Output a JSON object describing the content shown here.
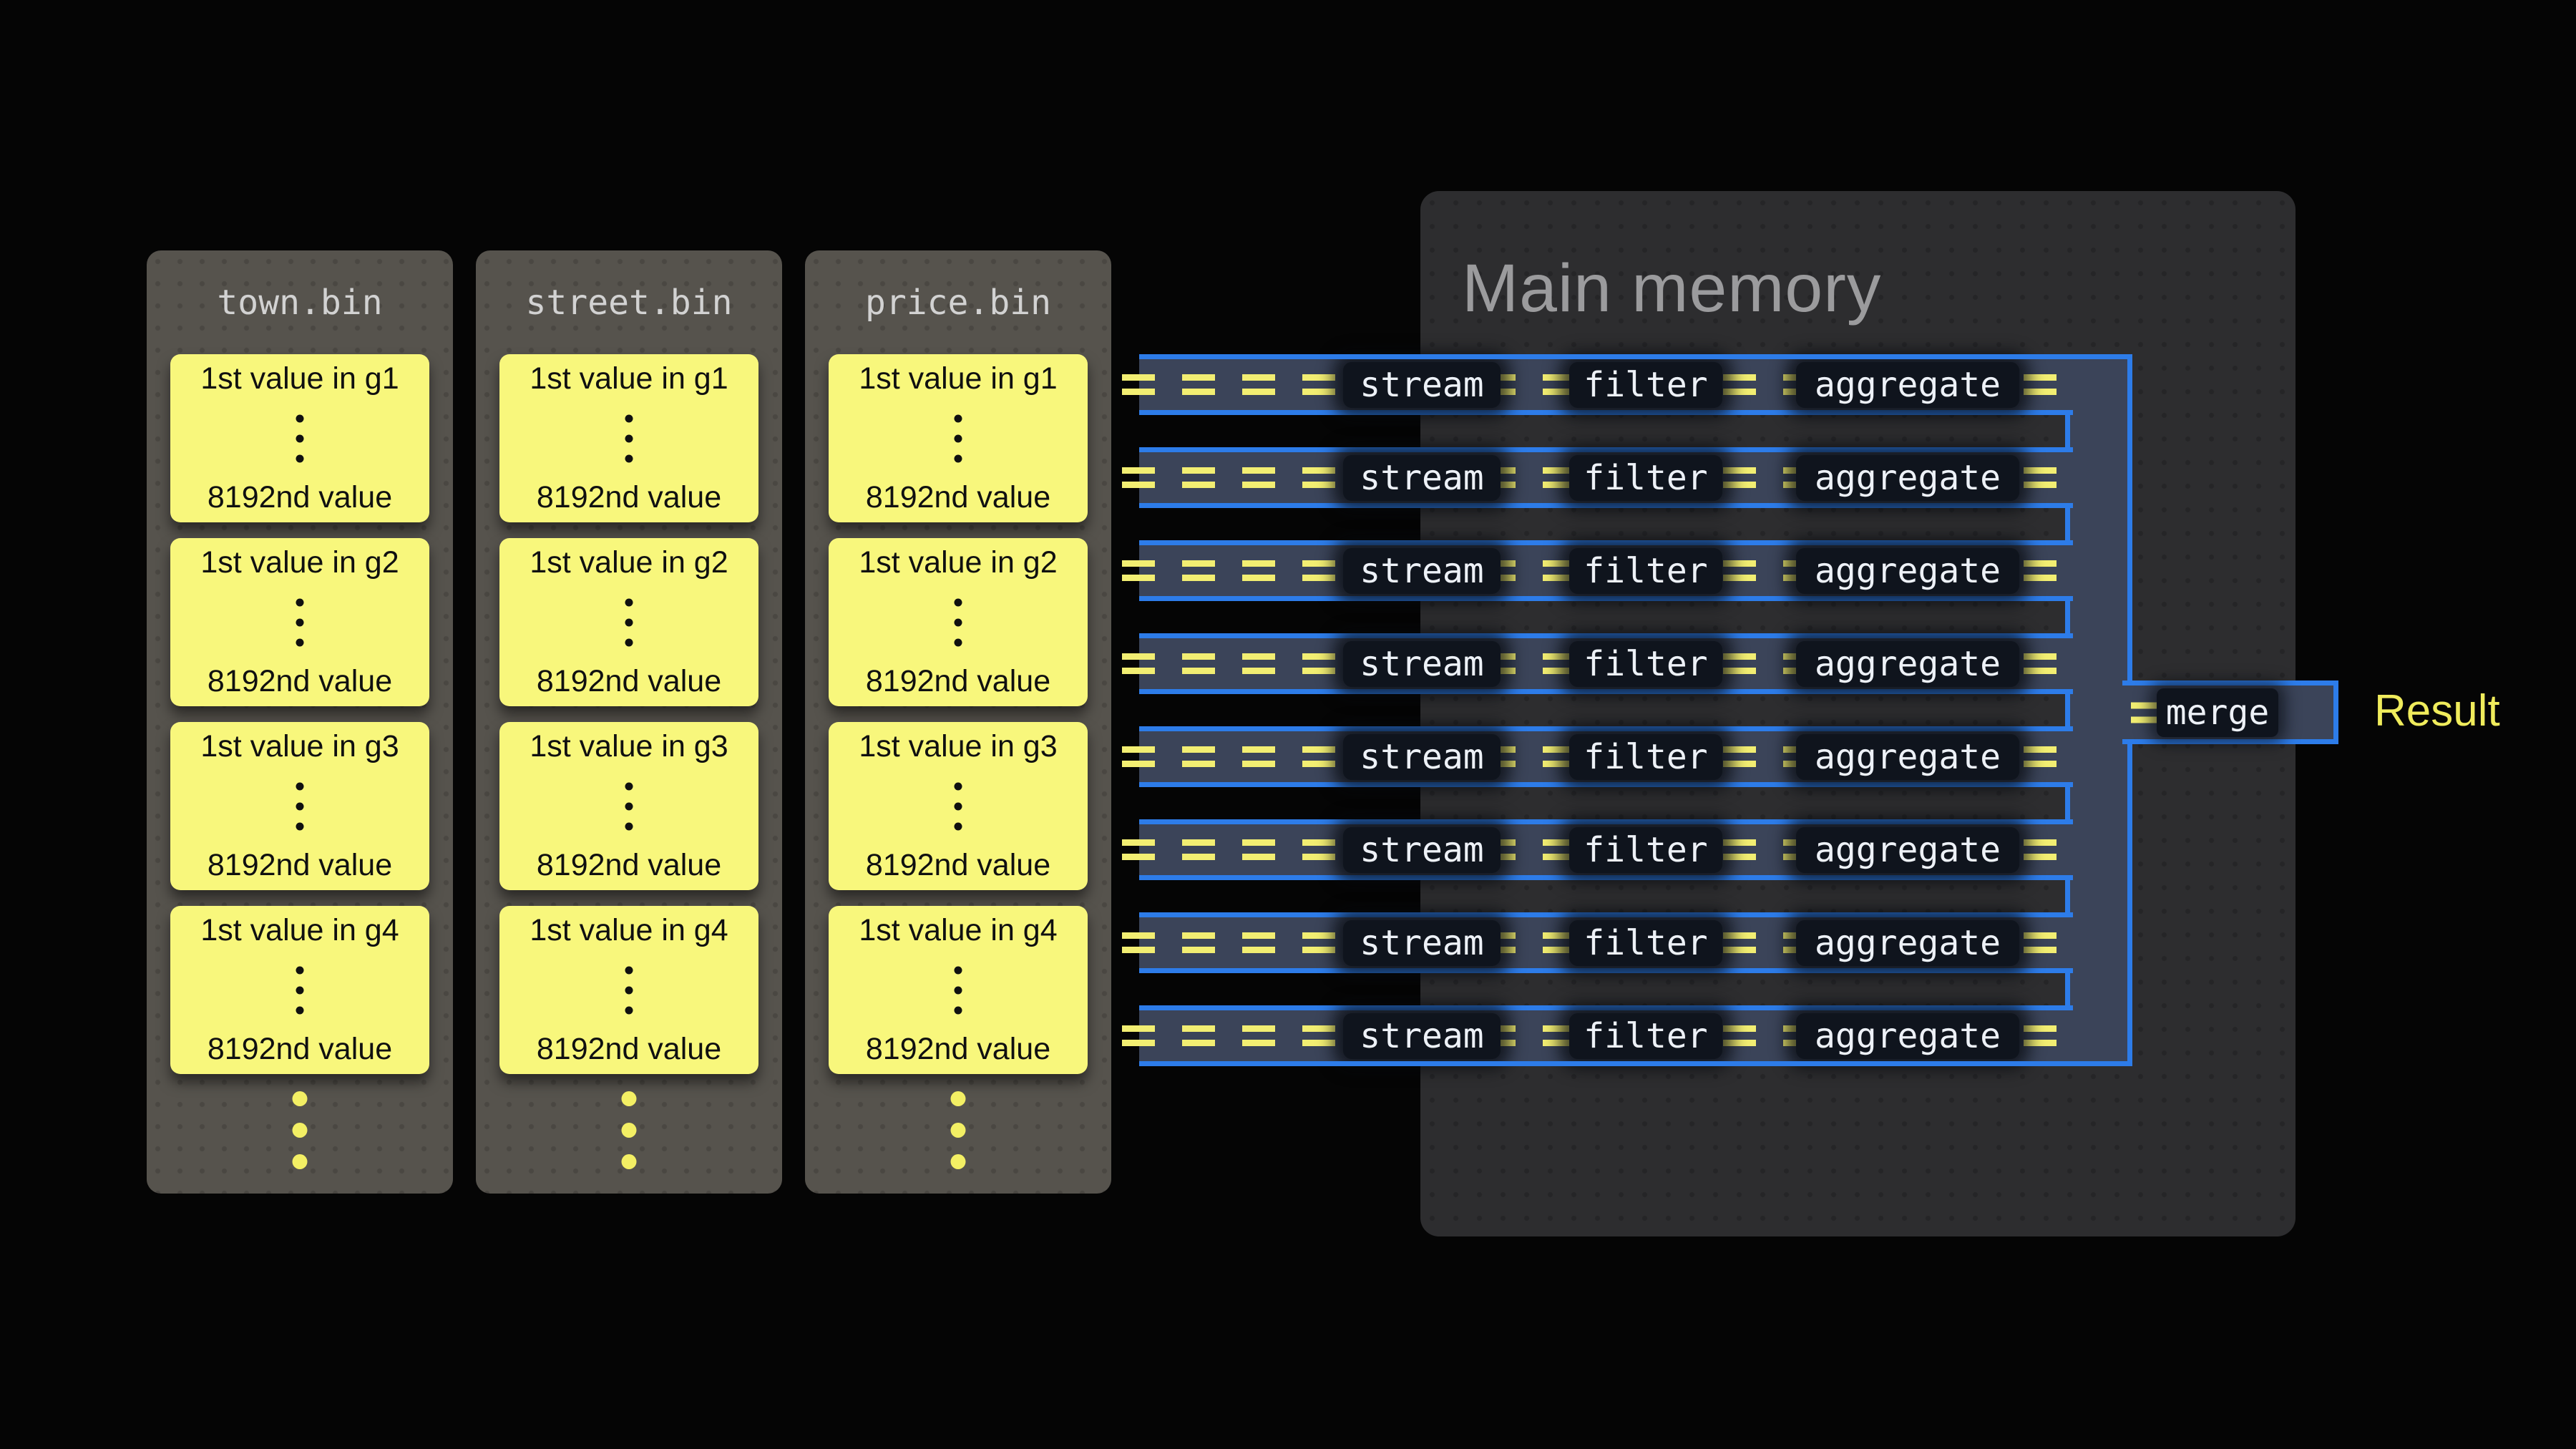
{
  "files": [
    {
      "title": "town.bin",
      "blocks": [
        {
          "top": "1st value in g1",
          "bottom": "8192nd value"
        },
        {
          "top": "1st value in g2",
          "bottom": "8192nd value"
        },
        {
          "top": "1st value in g3",
          "bottom": "8192nd value"
        },
        {
          "top": "1st value in g4",
          "bottom": "8192nd value"
        }
      ]
    },
    {
      "title": "street.bin",
      "blocks": [
        {
          "top": "1st value in g1",
          "bottom": "8192nd value"
        },
        {
          "top": "1st value in g2",
          "bottom": "8192nd value"
        },
        {
          "top": "1st value in g3",
          "bottom": "8192nd value"
        },
        {
          "top": "1st value in g4",
          "bottom": "8192nd value"
        }
      ]
    },
    {
      "title": "price.bin",
      "blocks": [
        {
          "top": "1st value in g1",
          "bottom": "8192nd value"
        },
        {
          "top": "1st value in g2",
          "bottom": "8192nd value"
        },
        {
          "top": "1st value in g3",
          "bottom": "8192nd value"
        },
        {
          "top": "1st value in g4",
          "bottom": "8192nd value"
        }
      ]
    }
  ],
  "main_memory": {
    "title": "Main memory"
  },
  "pipeline": {
    "row_count": 8,
    "eq_per_row": 16,
    "stages": [
      "stream",
      "filter",
      "aggregate"
    ],
    "merge_label": "merge",
    "result_label": "Result"
  },
  "colors": {
    "background": "#050505",
    "card_bg": "#56534d",
    "card_title": "#d2d2d2",
    "block_bg": "#f8f77c",
    "block_text": "#101010",
    "dot_yellow": "#f3ef64",
    "memory_bg": "#2d2d2f",
    "memory_title": "#9b9b9d",
    "accent_blue": "#2d7ce9",
    "pipe_fill": "#3b4459",
    "eq_yellow": "#f2ee72",
    "box_bg": "#0f141d",
    "box_text": "#edf1f7",
    "result_yellow": "#f0ec5c"
  }
}
